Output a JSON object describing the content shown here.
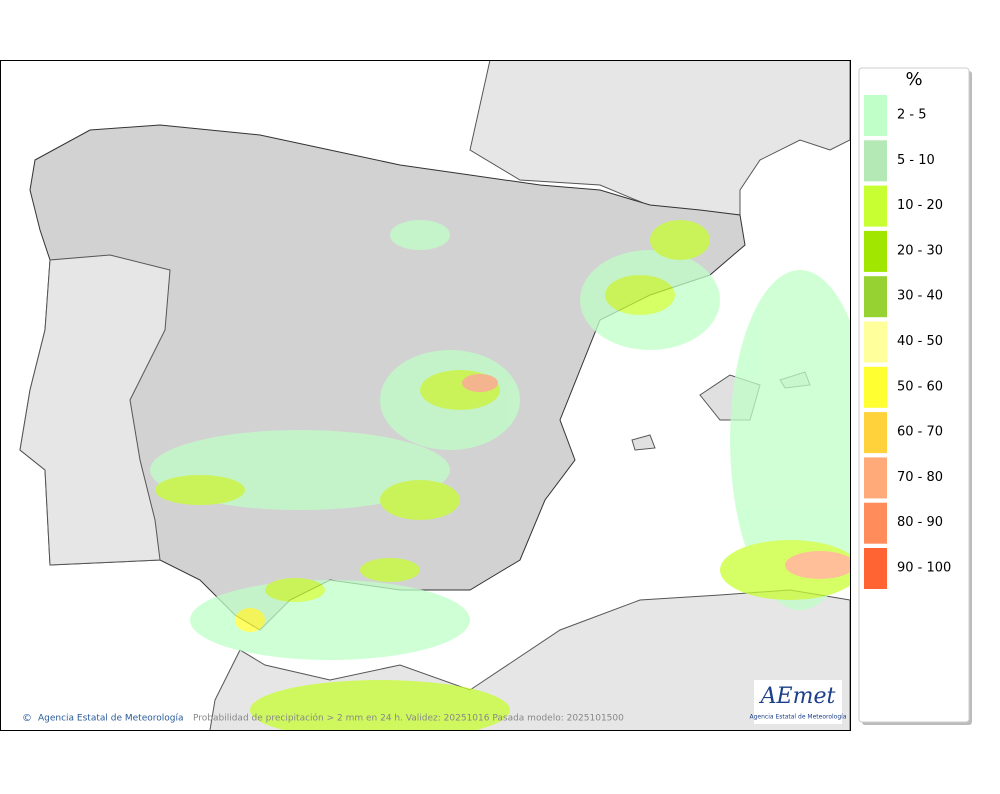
{
  "map": {
    "footer": {
      "agency": "Agencia Estatal de Meteorología",
      "caption": "Probabilidad de precipitación > 2 mm en 24 h. Validez: 20251016 Pasada modelo: 2025101500"
    },
    "logo": {
      "name": "AEmet",
      "subtitle": "Agencia Estatal de Meteorología"
    }
  },
  "legend": {
    "title": "%",
    "items": [
      {
        "label": "2 - 5",
        "color": "#c0ffc8"
      },
      {
        "label": "5 - 10",
        "color": "#b4e8b4"
      },
      {
        "label": "10 - 20",
        "color": "#c8ff32"
      },
      {
        "label": "20 - 30",
        "color": "#a0e600"
      },
      {
        "label": "30 - 40",
        "color": "#96d232"
      },
      {
        "label": "40 - 50",
        "color": "#ffff9b"
      },
      {
        "label": "50 - 60",
        "color": "#ffff32"
      },
      {
        "label": "60 - 70",
        "color": "#ffd23c"
      },
      {
        "label": "70 - 80",
        "color": "#ffaa78"
      },
      {
        "label": "80 - 90",
        "color": "#ff8c5a"
      },
      {
        "label": "90 - 100",
        "color": "#ff6432"
      }
    ]
  }
}
